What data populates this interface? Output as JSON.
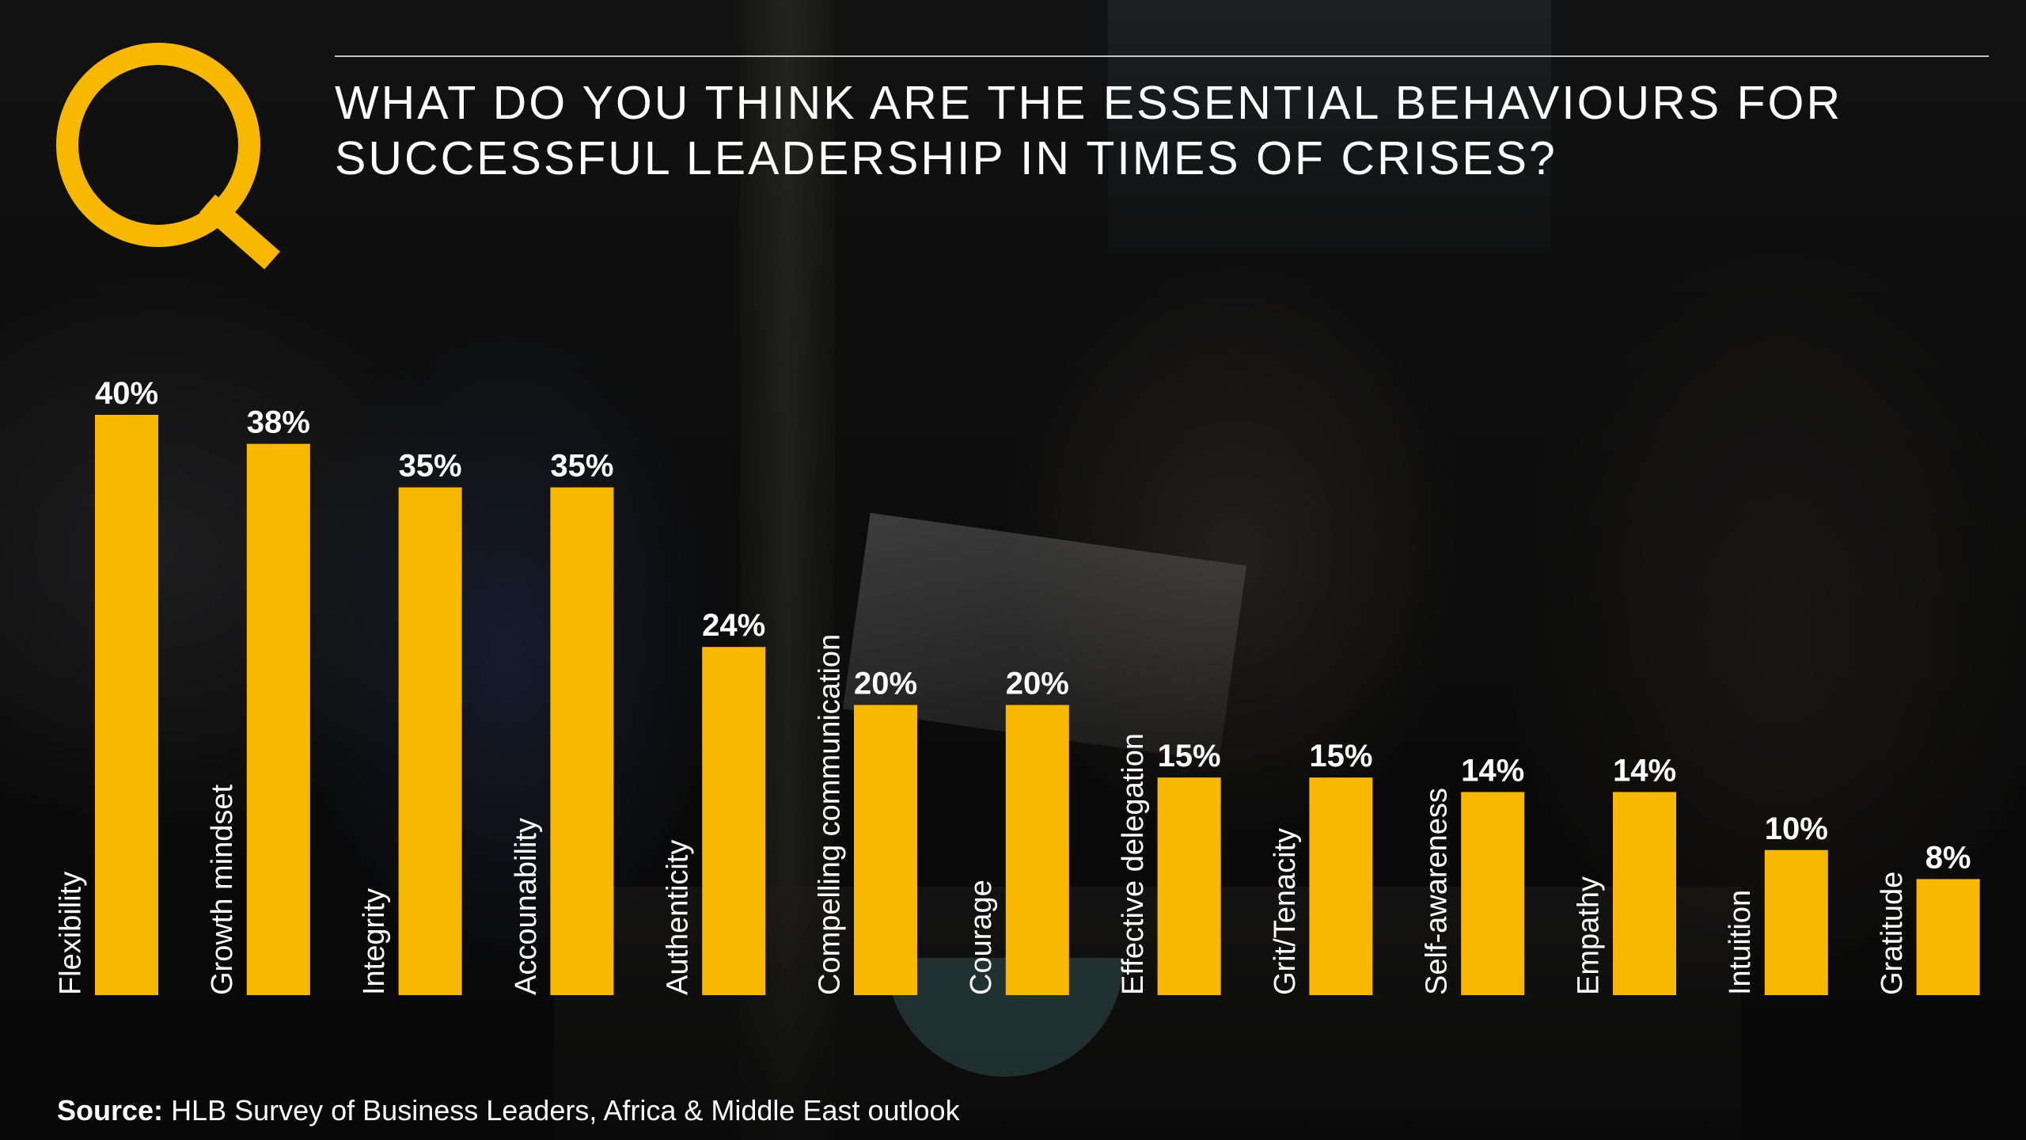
{
  "header": {
    "title_line1": "WHAT DO YOU THINK ARE THE ESSENTIAL BEHAVIOURS FOR",
    "title_line2": "SUCCESSFUL LEADERSHIP IN TIMES OF CRISES?"
  },
  "footer": {
    "source_label": "Source:",
    "source_text": "HLB Survey of Business Leaders, Africa & Middle East outlook"
  },
  "colors": {
    "accent": "#F8B800",
    "text": "#FFFFFF"
  },
  "chart_data": {
    "type": "bar",
    "title": "WHAT DO YOU THINK ARE THE ESSENTIAL BEHAVIOURS FOR SUCCESSFUL LEADERSHIP IN TIMES OF CRISES?",
    "categories": [
      "Flexibility",
      "Growth mindset",
      "Integrity",
      "Accounability",
      "Authenticity",
      "Compelling communication",
      "Courage",
      "Effective delegation",
      "Grit/Tenacity",
      "Self-awareness",
      "Empathy",
      "Intuition",
      "Gratitude"
    ],
    "values": [
      40,
      38,
      35,
      35,
      24,
      20,
      20,
      15,
      15,
      14,
      14,
      10,
      8
    ],
    "value_labels": [
      "40%",
      "38%",
      "35%",
      "35%",
      "24%",
      "20%",
      "20%",
      "15%",
      "15%",
      "14%",
      "14%",
      "10%",
      "8%"
    ],
    "unit": "%",
    "ylim": [
      0,
      40
    ],
    "grid": false,
    "legend": "none",
    "bar_color": "#F8B800"
  }
}
